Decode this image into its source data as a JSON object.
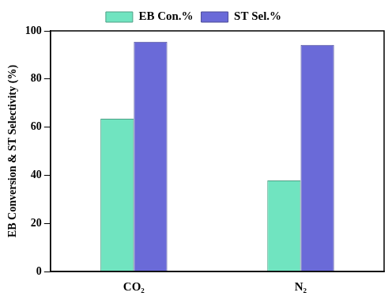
{
  "chart_data": {
    "type": "bar",
    "y_label": "EB Conversion & ST Selectivity (%)",
    "categories": [
      "CO₂",
      "N₂"
    ],
    "series": [
      {
        "name": "EB Con.%",
        "color": "#70e4c0",
        "values": [
          63.5,
          37.8
        ]
      },
      {
        "name": "ST Sel.%",
        "color": "#6a6ad8",
        "values": [
          95.5,
          94.2
        ]
      }
    ],
    "ylim": [
      0,
      100
    ],
    "yticks": [
      0,
      20,
      40,
      60,
      80,
      100
    ],
    "grid": false,
    "legend": "top"
  }
}
